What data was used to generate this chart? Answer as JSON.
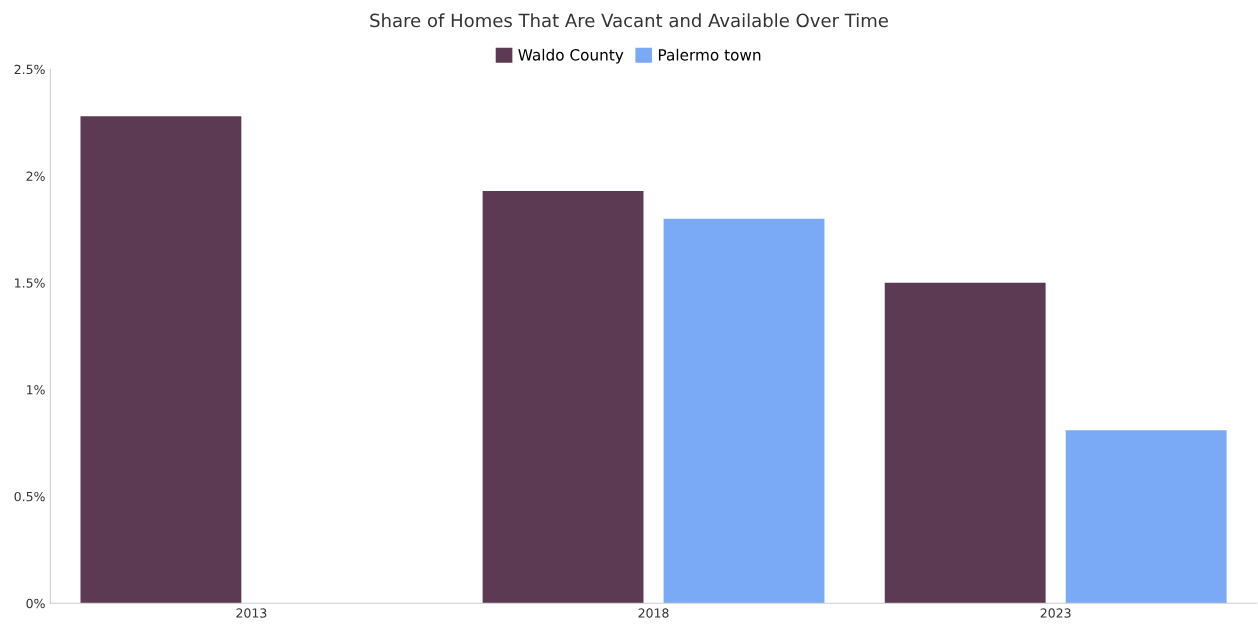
{
  "chart_data": {
    "type": "bar",
    "title": "Share of Homes That Are Vacant and Available Over Time",
    "categories": [
      "2013",
      "2018",
      "2023"
    ],
    "series": [
      {
        "name": "Waldo County",
        "color": "#5c3a53",
        "values": [
          2.28,
          1.93,
          1.5
        ]
      },
      {
        "name": "Palermo town",
        "color": "#7aaaf5",
        "values": [
          null,
          1.8,
          0.81
        ]
      }
    ],
    "ylim": [
      0,
      2.5
    ],
    "yticks": [
      {
        "value": 0,
        "label": "0%"
      },
      {
        "value": 0.5,
        "label": "0.5%"
      },
      {
        "value": 1,
        "label": "1%"
      },
      {
        "value": 1.5,
        "label": "1.5%"
      },
      {
        "value": 2,
        "label": "2%"
      },
      {
        "value": 2.5,
        "label": "2.5%"
      }
    ],
    "grid": false,
    "legend": "top"
  }
}
